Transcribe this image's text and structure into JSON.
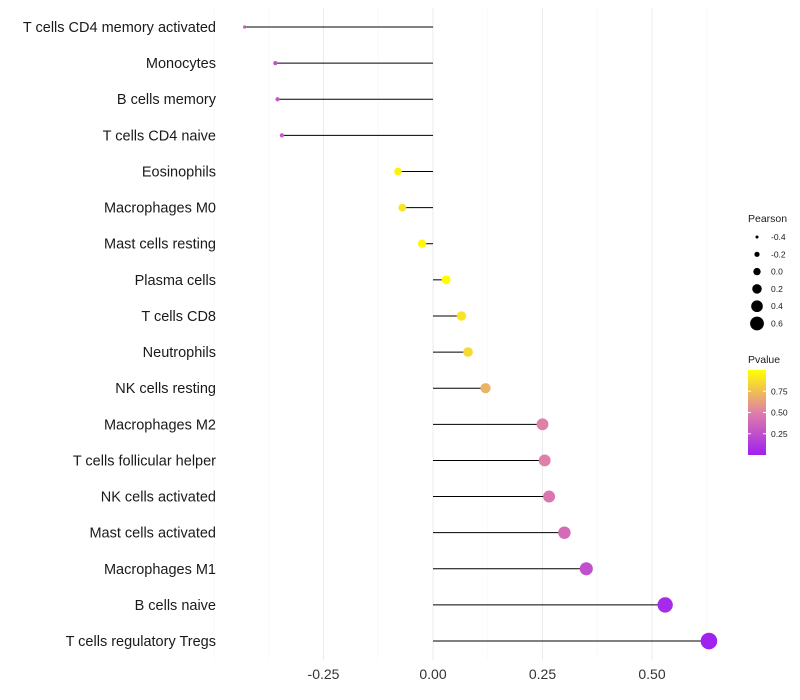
{
  "chart_data": {
    "type": "lollipop",
    "categories": [
      "T cells CD4 memory activated",
      "Monocytes",
      "B cells memory",
      "T cells CD4 naive",
      "Eosinophils",
      "Macrophages M0",
      "Mast cells resting",
      "Plasma cells",
      "T cells CD8",
      "Neutrophils",
      "NK cells resting",
      "Macrophages M2",
      "T cells follicular helper",
      "NK cells activated",
      "Mast cells activated",
      "Macrophages M1",
      "B cells naive",
      "T cells regulatory  Tregs"
    ],
    "pearson": [
      -0.43,
      -0.36,
      -0.355,
      -0.345,
      -0.08,
      -0.07,
      -0.025,
      0.03,
      0.065,
      0.08,
      0.12,
      0.25,
      0.255,
      0.265,
      0.3,
      0.35,
      0.53,
      0.63
    ],
    "pvalue": [
      0.3,
      0.25,
      0.3,
      0.3,
      0.95,
      0.9,
      0.98,
      0.99,
      0.9,
      0.85,
      0.7,
      0.5,
      0.5,
      0.45,
      0.4,
      0.25,
      0.05,
      0.01
    ],
    "xlim": [
      -0.5,
      0.7
    ],
    "x_ticks": [
      -0.25,
      0.0,
      0.25,
      0.5
    ],
    "x_tick_labels": [
      "-0.25",
      "0.00",
      "0.25",
      "0.50"
    ],
    "xlabel": "",
    "ylabel": "",
    "grid": true,
    "legend_position": "right",
    "legend_size": {
      "title": "Pearson",
      "values": [
        -0.4,
        -0.2,
        0.0,
        0.2,
        0.4,
        0.6
      ],
      "labels": [
        "-0.4",
        "-0.2",
        "0.0",
        "0.2",
        "0.4",
        "0.6"
      ]
    },
    "legend_color": {
      "title": "Pvalue",
      "range": [
        0.0,
        1.0
      ],
      "breaks": [
        0.75,
        0.5,
        0.25
      ],
      "labels": [
        "0.75",
        "0.50",
        "0.25"
      ],
      "low_color": "#a020f0",
      "high_color": "#ffff00"
    }
  }
}
